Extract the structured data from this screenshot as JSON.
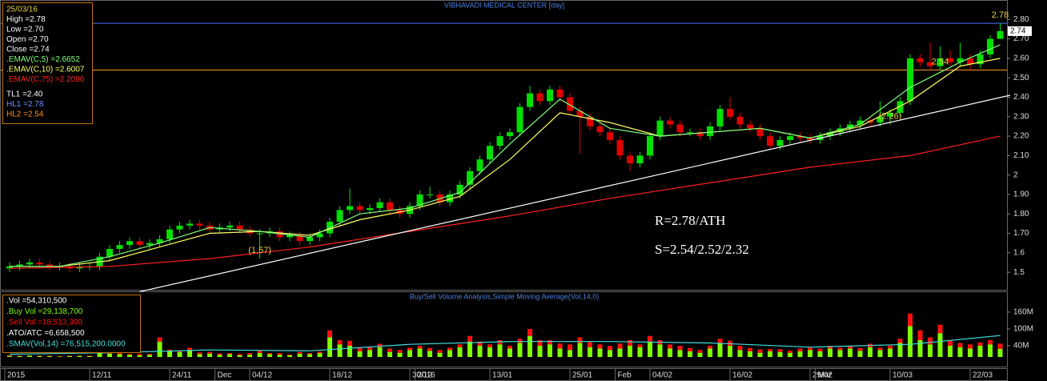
{
  "chart_data": {
    "type": "candlestick",
    "title": "VIBHAVADI MEDICAL CENTER [day]",
    "categories": [
      null,
      null,
      null,
      null,
      null,
      null,
      null,
      null,
      "12/11",
      null,
      null,
      null,
      null,
      null,
      null,
      null,
      "24/11",
      null,
      null,
      null,
      null,
      null,
      null,
      null,
      "04/12",
      null,
      null,
      null,
      null,
      null,
      null,
      null,
      "18/12",
      null,
      null,
      null,
      null,
      null,
      null,
      null,
      "30/12",
      null,
      null,
      null,
      null,
      null,
      null,
      null,
      "13/01",
      null,
      null,
      null,
      null,
      null,
      null,
      null,
      "25/01",
      null,
      null,
      null,
      null,
      null,
      null,
      null,
      "04/02",
      null,
      null,
      null,
      null,
      null,
      null,
      null,
      "16/02",
      null,
      null,
      null,
      null,
      null,
      null,
      null,
      "29/02",
      null,
      null,
      null,
      null,
      null,
      null,
      null,
      "10/03",
      null,
      null,
      null,
      null,
      null,
      null,
      null,
      "22/03",
      null,
      null,
      null
    ],
    "periods": [
      "2015",
      null,
      null,
      null,
      null,
      null,
      null,
      null,
      null,
      null,
      null,
      null,
      null,
      null,
      null,
      null,
      null,
      null,
      null,
      null,
      null,
      "Dec",
      null,
      null,
      null,
      null,
      null,
      null,
      null,
      null,
      null,
      null,
      null,
      null,
      null,
      null,
      null,
      null,
      null,
      null,
      null,
      "2016",
      null,
      null,
      null,
      null,
      null,
      null,
      null,
      null,
      null,
      null,
      null,
      null,
      null,
      null,
      null,
      null,
      null,
      null,
      null,
      "Feb",
      null,
      null,
      null,
      null,
      null,
      null,
      null,
      null,
      null,
      null,
      null,
      null,
      null,
      null,
      null,
      null,
      null,
      null,
      null,
      "Mar",
      null,
      null,
      null,
      null,
      null,
      null,
      null,
      null,
      null,
      null,
      null,
      null,
      null,
      null,
      null,
      null,
      null,
      null
    ],
    "open": [
      1.52,
      1.53,
      1.54,
      1.55,
      1.54,
      1.53,
      1.53,
      1.52,
      1.53,
      1.53,
      1.58,
      1.62,
      1.64,
      1.66,
      1.64,
      1.65,
      1.67,
      1.72,
      1.74,
      1.75,
      1.74,
      1.72,
      1.73,
      1.74,
      1.72,
      1.7,
      1.7,
      1.71,
      1.68,
      1.69,
      1.66,
      1.68,
      1.7,
      1.76,
      1.82,
      1.84,
      1.82,
      1.83,
      1.86,
      1.82,
      1.8,
      1.84,
      1.9,
      1.9,
      1.86,
      1.9,
      1.95,
      2.02,
      2.08,
      2.15,
      2.2,
      2.22,
      2.35,
      2.42,
      2.38,
      2.44,
      2.4,
      2.33,
      2.3,
      2.25,
      2.22,
      2.18,
      2.1,
      2.06,
      2.1,
      2.2,
      2.28,
      2.26,
      2.22,
      2.22,
      2.2,
      2.25,
      2.34,
      2.3,
      2.26,
      2.24,
      2.2,
      2.15,
      2.18,
      2.2,
      2.19,
      2.18,
      2.2,
      2.22,
      2.24,
      2.26,
      2.28,
      2.27,
      2.3,
      2.32,
      2.38,
      2.6,
      2.58,
      2.56,
      2.6,
      2.58,
      2.6,
      2.57,
      2.62,
      2.7
    ],
    "high": [
      1.55,
      1.56,
      1.57,
      1.57,
      1.56,
      1.55,
      1.55,
      1.55,
      1.55,
      1.6,
      1.64,
      1.66,
      1.68,
      1.68,
      1.67,
      1.69,
      1.74,
      1.76,
      1.77,
      1.77,
      1.76,
      1.75,
      1.76,
      1.76,
      1.74,
      1.72,
      1.73,
      1.73,
      1.71,
      1.71,
      1.7,
      1.72,
      1.78,
      1.84,
      1.93,
      1.86,
      1.85,
      1.88,
      1.88,
      1.84,
      1.86,
      1.92,
      1.94,
      1.92,
      1.92,
      1.97,
      2.04,
      2.1,
      2.17,
      2.22,
      2.24,
      2.37,
      2.46,
      2.44,
      2.46,
      2.46,
      2.42,
      2.35,
      2.32,
      2.27,
      2.24,
      2.2,
      2.12,
      2.12,
      2.22,
      2.3,
      2.3,
      2.28,
      2.24,
      2.24,
      2.27,
      2.36,
      2.4,
      2.32,
      2.28,
      2.26,
      2.22,
      2.2,
      2.22,
      2.22,
      2.21,
      2.22,
      2.24,
      2.26,
      2.28,
      2.3,
      2.3,
      2.38,
      2.34,
      2.4,
      2.62,
      2.62,
      2.68,
      2.66,
      2.64,
      2.68,
      2.62,
      2.64,
      2.72,
      2.78
    ],
    "low": [
      1.5,
      1.51,
      1.52,
      1.52,
      1.51,
      1.51,
      1.5,
      1.5,
      1.51,
      1.51,
      1.56,
      1.6,
      1.62,
      1.62,
      1.62,
      1.63,
      1.65,
      1.7,
      1.72,
      1.72,
      1.7,
      1.7,
      1.71,
      1.7,
      1.68,
      1.57,
      1.68,
      1.66,
      1.66,
      1.64,
      1.64,
      1.66,
      1.68,
      1.74,
      1.8,
      1.8,
      1.8,
      1.81,
      1.8,
      1.78,
      1.78,
      1.82,
      1.88,
      1.84,
      1.84,
      1.88,
      1.93,
      2.0,
      2.06,
      2.13,
      2.18,
      2.2,
      2.33,
      2.36,
      2.36,
      2.38,
      2.31,
      2.11,
      2.23,
      2.2,
      2.16,
      2.08,
      2.02,
      2.04,
      2.08,
      2.18,
      2.24,
      2.2,
      2.2,
      2.18,
      2.18,
      2.23,
      2.28,
      2.24,
      2.22,
      2.18,
      2.13,
      2.13,
      2.16,
      2.17,
      2.16,
      2.16,
      2.18,
      2.2,
      2.22,
      2.24,
      2.25,
      2.25,
      2.26,
      2.3,
      2.36,
      2.56,
      2.54,
      2.54,
      2.56,
      2.56,
      2.54,
      2.55,
      2.6,
      2.7
    ],
    "close": [
      1.53,
      1.54,
      1.55,
      1.54,
      1.53,
      1.53,
      1.52,
      1.53,
      1.53,
      1.58,
      1.62,
      1.64,
      1.66,
      1.64,
      1.65,
      1.67,
      1.72,
      1.74,
      1.75,
      1.74,
      1.72,
      1.73,
      1.74,
      1.72,
      1.7,
      1.7,
      1.71,
      1.68,
      1.69,
      1.66,
      1.68,
      1.7,
      1.76,
      1.82,
      1.84,
      1.82,
      1.83,
      1.86,
      1.82,
      1.8,
      1.84,
      1.9,
      1.9,
      1.86,
      1.9,
      1.95,
      2.02,
      2.08,
      2.15,
      2.2,
      2.22,
      2.35,
      2.42,
      2.38,
      2.44,
      2.4,
      2.33,
      2.3,
      2.25,
      2.22,
      2.18,
      2.1,
      2.06,
      2.1,
      2.2,
      2.28,
      2.26,
      2.22,
      2.22,
      2.2,
      2.25,
      2.34,
      2.3,
      2.26,
      2.24,
      2.2,
      2.15,
      2.18,
      2.2,
      2.19,
      2.18,
      2.2,
      2.22,
      2.24,
      2.26,
      2.28,
      2.27,
      2.3,
      2.32,
      2.38,
      2.6,
      2.58,
      2.56,
      2.6,
      2.58,
      2.6,
      2.57,
      2.62,
      2.7,
      2.74
    ],
    "up_color": "#00e000",
    "down_color": "#e00000",
    "ylim": [
      1.41,
      2.9
    ],
    "yticks": [
      {
        "value": 1.5,
        "label": "1.5"
      },
      1.6,
      {
        "value": 1.7,
        "label": "1.70"
      },
      {
        "value": 1.8,
        "label": "1.80"
      },
      {
        "value": 1.9,
        "label": "1.90"
      },
      2,
      {
        "value": 2.1,
        "label": "2.10"
      },
      {
        "value": 2.2,
        "label": "2.20"
      },
      {
        "value": 2.3,
        "label": "2.30"
      },
      {
        "value": 2.4,
        "label": "2.40"
      },
      {
        "value": 2.5,
        "label": "2.50"
      },
      {
        "value": 2.6,
        "label": "2.60"
      },
      {
        "value": 2.7,
        "label": "2.70"
      },
      {
        "value": 2.8,
        "label": "2.80"
      }
    ],
    "overlays": [
      {
        "color": "#ff2020",
        "x": [
          0,
          10,
          20,
          30,
          40,
          50,
          60,
          70,
          80,
          90,
          99
        ],
        "values": [
          1.52,
          1.53,
          1.57,
          1.63,
          1.71,
          1.79,
          1.88,
          1.96,
          2.04,
          2.1,
          2.2
        ]
      },
      {
        "color": "#ffff60",
        "x": [
          0,
          5,
          10,
          15,
          20,
          25,
          30,
          35,
          40,
          45,
          50,
          55,
          60,
          65,
          70,
          75,
          80,
          85,
          90,
          95,
          99
        ],
        "values": [
          1.53,
          1.53,
          1.56,
          1.63,
          1.7,
          1.71,
          1.69,
          1.77,
          1.82,
          1.89,
          2.08,
          2.32,
          2.27,
          2.2,
          2.22,
          2.24,
          2.19,
          2.25,
          2.38,
          2.56,
          2.6
        ]
      },
      {
        "color": "#80ff80",
        "x": [
          0,
          5,
          10,
          15,
          20,
          25,
          30,
          35,
          40,
          45,
          50,
          55,
          60,
          65,
          70,
          75,
          80,
          85,
          90,
          95,
          99
        ],
        "values": [
          1.53,
          1.53,
          1.58,
          1.65,
          1.73,
          1.71,
          1.68,
          1.8,
          1.83,
          1.91,
          2.16,
          2.39,
          2.24,
          2.2,
          2.22,
          2.24,
          2.19,
          2.26,
          2.45,
          2.58,
          2.67
        ]
      },
      {
        "color": "#ffffff",
        "x": [
          13,
          100
        ],
        "values": [
          1.4,
          2.41
        ]
      }
    ],
    "hlines": [
      {
        "value": 2.78,
        "color": "#5070ff"
      },
      {
        "value": 2.54,
        "color": "#ff9020"
      }
    ],
    "annotations": [
      {
        "text": "2.78",
        "x": 99,
        "y": 2.78,
        "color": "#e8d040"
      },
      {
        "text": "2.54",
        "x": 93,
        "y": 2.54,
        "color": "#e8d040"
      },
      {
        "text": "(2.26)",
        "x": 88,
        "y": 2.26,
        "color": "#e8d040"
      },
      {
        "text": "(1.57)",
        "x": 25,
        "y": 1.57,
        "color": "#e8d040"
      }
    ],
    "notes": [
      "R=2.78/ATH",
      "S=2.54/2.52/2.32"
    ],
    "info": [
      {
        "text": "25/03/16",
        "color": "#e8d040"
      },
      {
        "text": "High =2.78",
        "color": "#fff"
      },
      {
        "text": "Low =2.70",
        "color": "#fff"
      },
      {
        "text": "Open =2.70",
        "color": "#fff"
      },
      {
        "text": "Close =2.74",
        "color": "#fff"
      },
      {
        "text": ".EMAV(C,5)  =2.6652",
        "color": "#80ff80"
      },
      {
        "text": ".EMAV(C,10)  =2.6007",
        "color": "#ffff60"
      },
      {
        "text": ".EMAV(C,75) =2.2096",
        "color": "#ff2020"
      },
      {
        "text": "TL1 =2.40",
        "color": "#fff"
      },
      {
        "text": "HL1 =2.78",
        "color": "#7090ff"
      },
      {
        "text": "HL2 =2.54",
        "color": "#ff9020"
      }
    ],
    "volume": {
      "title": "Buy/Sell Volume Analysis,Simple Moving Average(Vol,14,0)",
      "buy": [
        4000000.0,
        3000000.0,
        5000000.0,
        3000000.0,
        3000000.0,
        2000000.0,
        3000000.0,
        4000000.0,
        3000000.0,
        15000000.0,
        12000000.0,
        10000000.0,
        8000000.0,
        6000000.0,
        8000000.0,
        55000000.0,
        20000000.0,
        18000000.0,
        25000000.0,
        10000000.0,
        12000000.0,
        8000000.0,
        10000000.0,
        6000000.0,
        8000000.0,
        14000000.0,
        10000000.0,
        8000000.0,
        6000000.0,
        12000000.0,
        10000000.0,
        14000000.0,
        70000000.0,
        45000000.0,
        40000000.0,
        20000000.0,
        25000000.0,
        35000000.0,
        18000000.0,
        15000000.0,
        25000000.0,
        30000000.0,
        22000000.0,
        15000000.0,
        25000000.0,
        35000000.0,
        55000000.0,
        40000000.0,
        35000000.0,
        45000000.0,
        30000000.0,
        50000000.0,
        75000000.0,
        40000000.0,
        45000000.0,
        30000000.0,
        25000000.0,
        50000000.0,
        35000000.0,
        30000000.0,
        25000000.0,
        30000000.0,
        40000000.0,
        35000000.0,
        55000000.0,
        45000000.0,
        30000000.0,
        25000000.0,
        20000000.0,
        15000000.0,
        30000000.0,
        50000000.0,
        40000000.0,
        25000000.0,
        20000000.0,
        15000000.0,
        20000000.0,
        18000000.0,
        15000000.0,
        20000000.0,
        25000000.0,
        20000000.0,
        30000000.0,
        25000000.0,
        30000000.0,
        22000000.0,
        35000000.0,
        25000000.0,
        30000000.0,
        50000000.0,
        110000000.0,
        60000000.0,
        45000000.0,
        85000000.0,
        40000000.0,
        35000000.0,
        30000000.0,
        40000000.0,
        45000000.0,
        29138700
      ],
      "sell": [
        2000000.0,
        2000000.0,
        1000000.0,
        2000000.0,
        2000000.0,
        2000000.0,
        2000000.0,
        1000000.0,
        2000000.0,
        5000000.0,
        4000000.0,
        4000000.0,
        3000000.0,
        5000000.0,
        3000000.0,
        15000000.0,
        6000000.0,
        5000000.0,
        8000000.0,
        6000000.0,
        6000000.0,
        5000000.0,
        4000000.0,
        5000000.0,
        6000000.0,
        8000000.0,
        4000000.0,
        6000000.0,
        3000000.0,
        6000000.0,
        4000000.0,
        5000000.0,
        25000000.0,
        15000000.0,
        18000000.0,
        12000000.0,
        10000000.0,
        12000000.0,
        12000000.0,
        10000000.0,
        8000000.0,
        10000000.0,
        10000000.0,
        10000000.0,
        8000000.0,
        10000000.0,
        20000000.0,
        15000000.0,
        10000000.0,
        15000000.0,
        10000000.0,
        15000000.0,
        25000000.0,
        20000000.0,
        15000000.0,
        18000000.0,
        20000000.0,
        20000000.0,
        18000000.0,
        15000000.0,
        15000000.0,
        18000000.0,
        20000000.0,
        10000000.0,
        20000000.0,
        15000000.0,
        15000000.0,
        15000000.0,
        12000000.0,
        10000000.0,
        10000000.0,
        15000000.0,
        18000000.0,
        15000000.0,
        12000000.0,
        12000000.0,
        8000000.0,
        10000000.0,
        8000000.0,
        10000000.0,
        8000000.0,
        10000000.0,
        10000000.0,
        8000000.0,
        10000000.0,
        10000000.0,
        12000000.0,
        8000000.0,
        10000000.0,
        15000000.0,
        45000000.0,
        35000000.0,
        25000000.0,
        30000000.0,
        20000000.0,
        15000000.0,
        15000000.0,
        12000000.0,
        15000000.0,
        18513300
      ],
      "buy_color": "#80ff00",
      "sell_color": "#ff1010",
      "sma": {
        "color": "#40e0e0",
        "x": [
          0,
          10,
          20,
          30,
          40,
          50,
          60,
          70,
          80,
          90,
          99
        ],
        "values": [
          10000000.0,
          15000000.0,
          25000000.0,
          22000000.0,
          45000000.0,
          55000000.0,
          55000000.0,
          50000000.0,
          35000000.0,
          45000000.0,
          76515200
        ]
      },
      "ylim": [
        0,
        234000000.0
      ],
      "yticks": [
        {
          "value": 40000000.0,
          "label": "40M"
        },
        {
          "value": 100000000.0,
          "label": "100M"
        },
        {
          "value": 160000000.0,
          "label": "160M"
        }
      ],
      "info": [
        {
          "text": ".Vol     =54,310,500",
          "color": "#fff"
        },
        {
          "text": ".Buy Vol  =29,138,700",
          "color": "#80ff00"
        },
        {
          "text": ".Sell Vol  =18,513,300",
          "color": "#ff1010"
        },
        {
          "text": ".ATO/ATC   =6,658,500",
          "color": "#fff"
        },
        {
          "text": ".SMAV(Vol,14)  =76,515,200.0000",
          "color": "#40e0e0"
        }
      ]
    }
  }
}
